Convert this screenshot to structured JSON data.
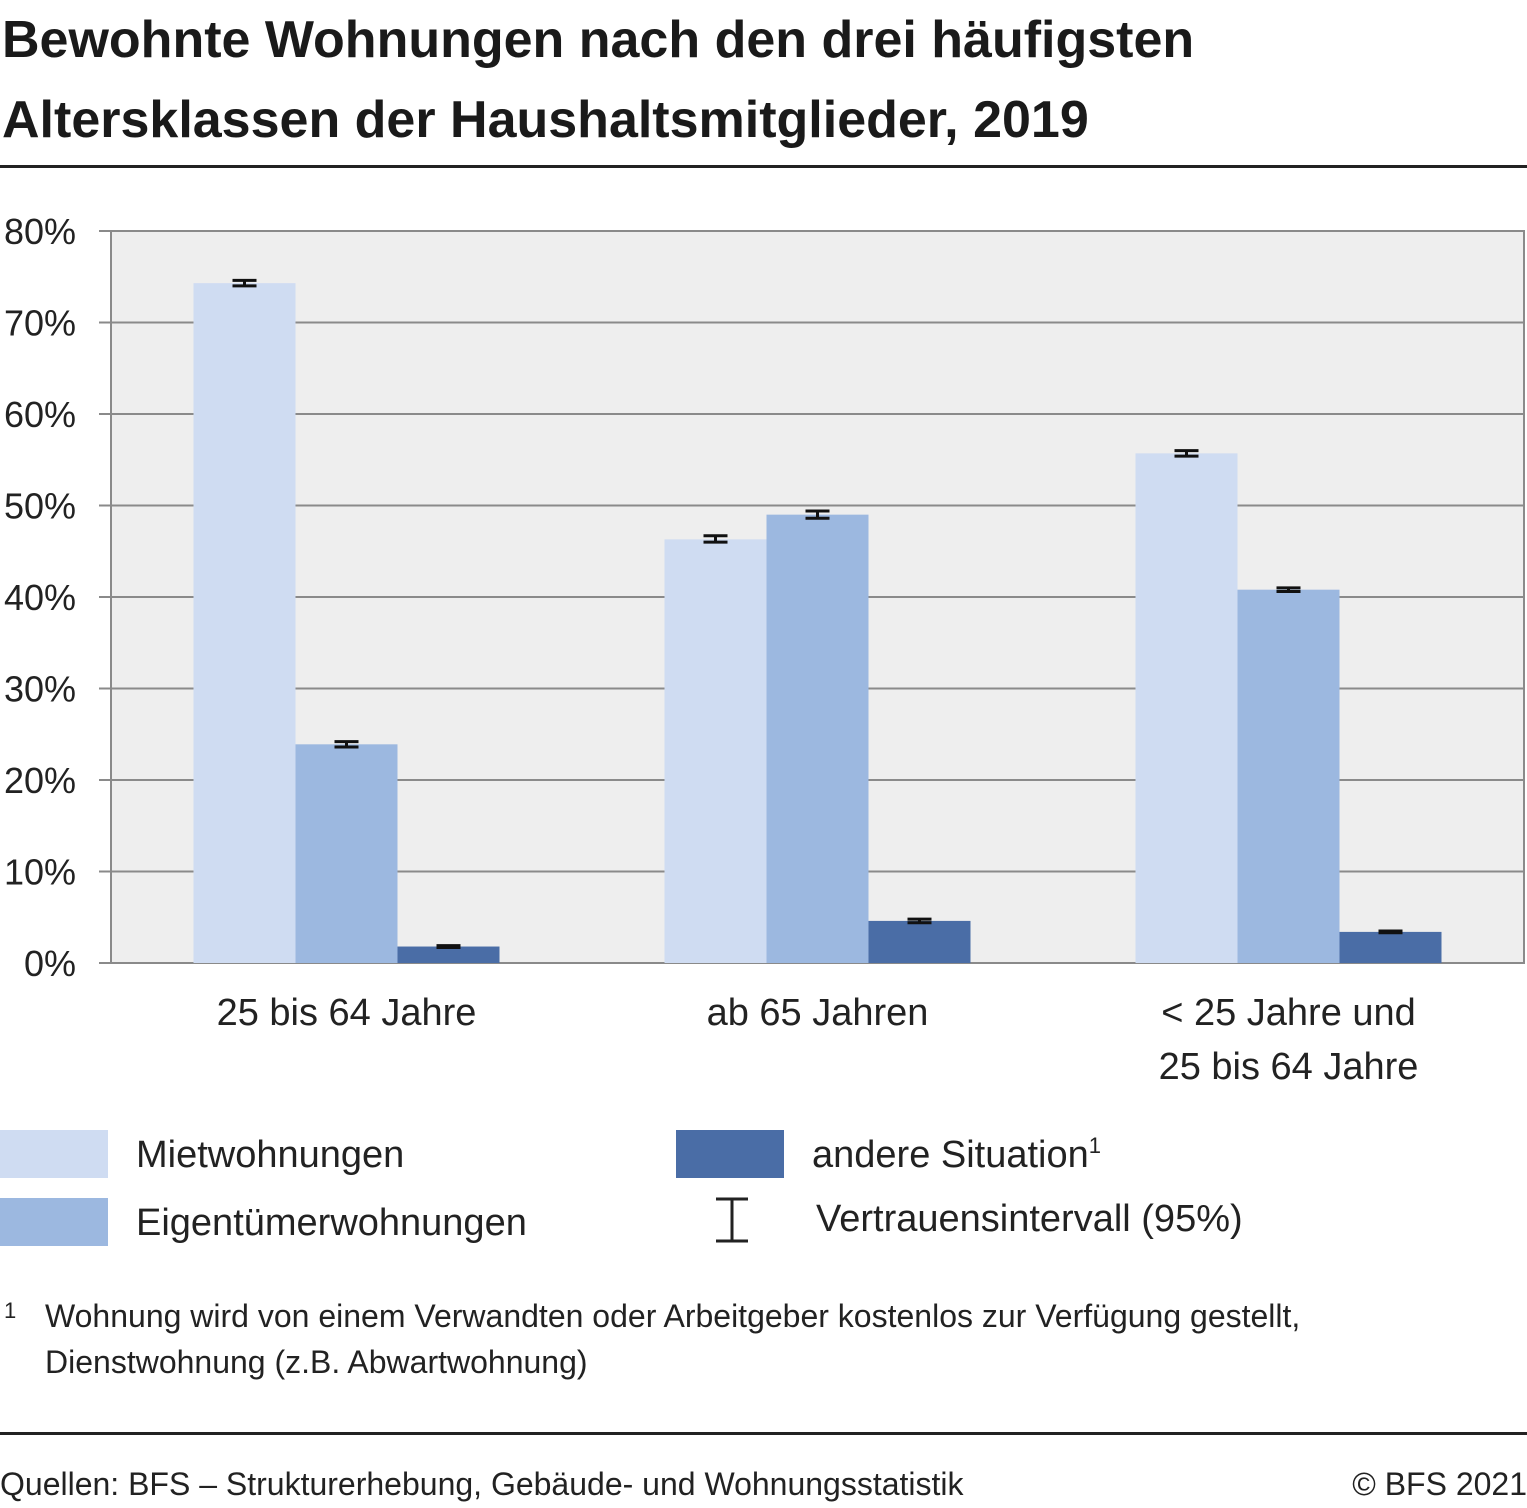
{
  "header": {
    "title_line1": "Bewohnte Wohnungen nach den drei häufigsten",
    "title_line2": "Altersklassen der Haushaltsmitglieder, 2019"
  },
  "chart_data": {
    "type": "bar",
    "categories": [
      [
        "25 bis 64 Jahre"
      ],
      [
        "ab 65 Jahren"
      ],
      [
        "< 25 Jahre und",
        "25 bis 64 Jahre"
      ]
    ],
    "series": [
      {
        "name": "Mietwohnungen",
        "color": "#cfdcf2",
        "values": [
          74.3,
          46.3,
          55.7
        ],
        "ci": [
          [
            74.0,
            74.6
          ],
          [
            46.0,
            46.7
          ],
          [
            55.4,
            56.0
          ]
        ]
      },
      {
        "name": "Eigentümerwohnungen",
        "color": "#9cb8e0",
        "values": [
          23.9,
          49.0,
          40.8
        ],
        "ci": [
          [
            23.6,
            24.2
          ],
          [
            48.6,
            49.4
          ],
          [
            40.6,
            41.0
          ]
        ]
      },
      {
        "name": "andere Situation",
        "color": "#4a6da6",
        "values": [
          1.8,
          4.6,
          3.4
        ],
        "ci": [
          [
            1.7,
            1.9
          ],
          [
            4.4,
            4.8
          ],
          [
            3.3,
            3.5
          ]
        ]
      }
    ],
    "ylim": [
      0,
      80
    ],
    "yticks": [
      0,
      10,
      20,
      30,
      40,
      50,
      60,
      70,
      80
    ],
    "ytick_suffix": "%",
    "grid": true,
    "plot_background": "#eeeeee",
    "legend_position": "bottom"
  },
  "legend": {
    "items": [
      {
        "label": "Mietwohnungen",
        "color": "#cfdcf2"
      },
      {
        "label": "Eigentümerwohnungen",
        "color": "#9cb8e0"
      },
      {
        "label": "andere Situation",
        "color": "#4a6da6",
        "footnote_ref": "1"
      }
    ],
    "ci_label": "Vertrauensintervall (95%)"
  },
  "footnote": {
    "mark": "1",
    "line1": "Wohnung wird von einem Verwandten oder Arbeitgeber kostenlos zur Verfügung gestellt,",
    "line2": "Dienstwohnung (z.B. Abwartwohnung)"
  },
  "footer": {
    "source": "Quellen: BFS – Strukturerhebung, Gebäude- und Wohnungsstatistik",
    "copyright": "© BFS 2021"
  }
}
